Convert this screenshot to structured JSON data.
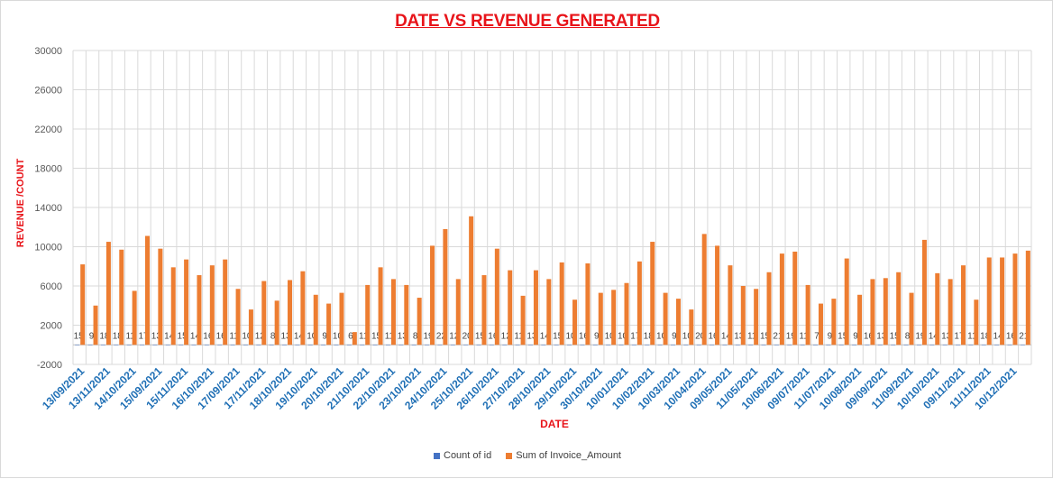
{
  "chart_data": {
    "type": "bar",
    "title": "DATE VS REVENUE GENERATED",
    "xlabel": "DATE",
    "ylabel": "REVENUE /COUNT",
    "ylim": [
      -2000,
      30000
    ],
    "yticks": [
      -2000,
      2000,
      6000,
      10000,
      14000,
      18000,
      22000,
      26000,
      30000
    ],
    "grid": true,
    "legend_position": "bottom",
    "colors": {
      "count": "#4472c4",
      "amount": "#ed7d31",
      "labels": "#1f6fb5"
    },
    "x_tick_labels": [
      "13/09/2021",
      "13/11/2021",
      "14/10/2021",
      "15/09/2021",
      "15/11/2021",
      "16/10/2021",
      "17/09/2021",
      "17/11/2021",
      "18/10/2021",
      "19/10/2021",
      "20/10/2021",
      "21/10/2021",
      "22/10/2021",
      "23/10/2021",
      "24/10/2021",
      "25/10/2021",
      "26/10/2021",
      "27/10/2021",
      "28/10/2021",
      "29/10/2021",
      "30/10/2021",
      "10/01/2021",
      "10/02/2021",
      "10/03/2021",
      "10/04/2021",
      "09/05/2021",
      "11/05/2021",
      "10/06/2021",
      "09/07/2021",
      "11/07/2021",
      "10/08/2021",
      "09/09/2021",
      "11/09/2021",
      "10/10/2021",
      "09/11/2021",
      "11/11/2021",
      "10/12/2021"
    ],
    "series": [
      {
        "name": "Count of id",
        "values": [
          15,
          9,
          18,
          18,
          11,
          17,
          13,
          14,
          15,
          14,
          16,
          16,
          11,
          10,
          12,
          8,
          13,
          14,
          10,
          9,
          10,
          6,
          11,
          15,
          11,
          13,
          8,
          19,
          22,
          12,
          20,
          15,
          16,
          12,
          11,
          13,
          14,
          15,
          10,
          16,
          9,
          10,
          10,
          17,
          18,
          10,
          9,
          10,
          20,
          16,
          14,
          13,
          11,
          15,
          21,
          19,
          11,
          7,
          9,
          15,
          9,
          16,
          13,
          15,
          8,
          19,
          14,
          13,
          17,
          11,
          18,
          14,
          16,
          21
        ]
      },
      {
        "name": "Sum of Invoice_Amount",
        "values": [
          8200,
          4000,
          10500,
          9700,
          5500,
          11100,
          9800,
          7900,
          8700,
          7100,
          8100,
          8700,
          5700,
          3600,
          6500,
          4500,
          6600,
          7500,
          5100,
          4200,
          5300,
          1300,
          6100,
          7900,
          6700,
          6100,
          4800,
          10100,
          11800,
          6700,
          13100,
          7100,
          9800,
          7600,
          5000,
          7600,
          6700,
          8400,
          4600,
          8300,
          5300,
          5600,
          6300,
          8500,
          10500,
          5300,
          4700,
          3600,
          11300,
          10100,
          8100,
          6000,
          5700,
          7400,
          9300,
          9500,
          6100,
          4200,
          4700,
          8800,
          5100,
          6700,
          6800,
          7400,
          5300,
          10700,
          7300,
          6700,
          8100,
          4600,
          8900,
          8900,
          9300,
          9600
        ]
      }
    ]
  }
}
